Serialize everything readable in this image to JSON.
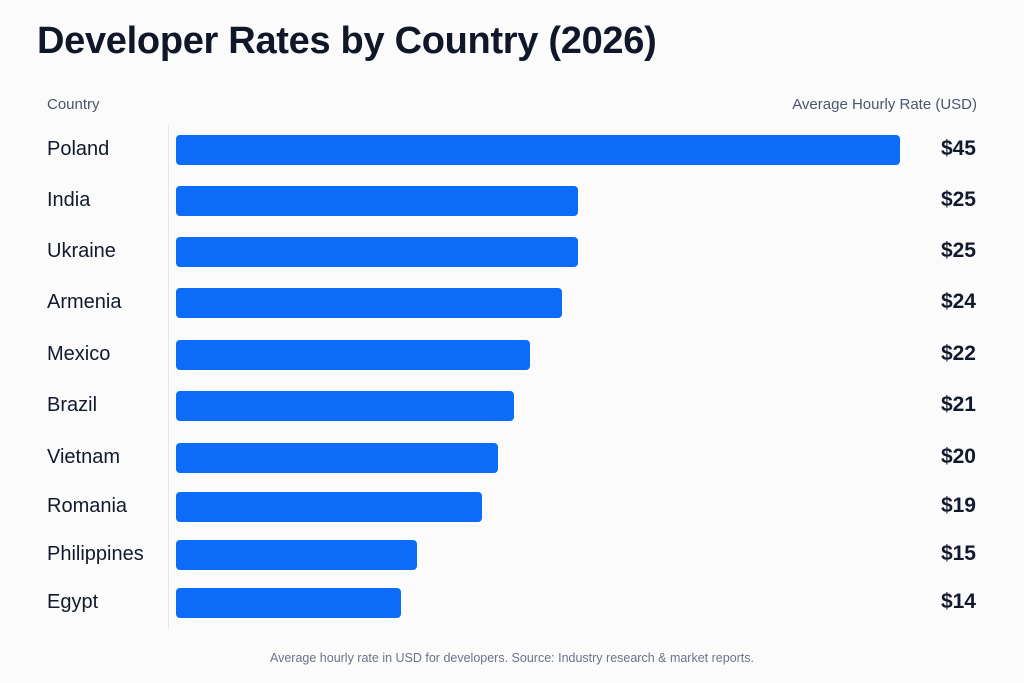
{
  "chart_data": {
    "type": "bar",
    "orientation": "horizontal",
    "title": "Developer Rates by Country (2026)",
    "xlabel": "Average Hourly Rate (USD)",
    "ylabel": "Country",
    "categories": [
      "Poland",
      "India",
      "Ukraine",
      "Armenia",
      "Mexico",
      "Brazil",
      "Vietnam",
      "Romania",
      "Philippines",
      "Egypt"
    ],
    "values": [
      45,
      25,
      25,
      24,
      22,
      21,
      20,
      19,
      15,
      14
    ],
    "value_labels": [
      "$45",
      "$25",
      "$25",
      "$24",
      "$22",
      "$21",
      "$20",
      "$19",
      "$15",
      "$14"
    ],
    "unit": "USD",
    "grid": false,
    "bar_color": "#0b6cf7",
    "footnote": "Average hourly rate in USD for developers. Source: Industry research & market reports."
  }
}
